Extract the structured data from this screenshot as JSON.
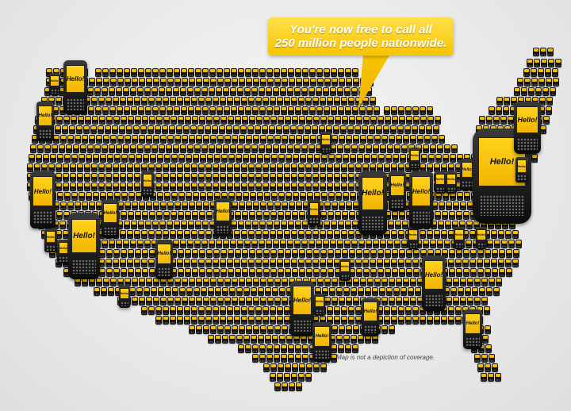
{
  "bubble": {
    "line1": "You're now free to call all",
    "line2": "250 million people nationwide."
  },
  "phone_screen_text": "Hello!",
  "disclaimer": "Map is not a depiction of coverage.",
  "colors": {
    "accent": "#f2be00",
    "phone": "#141414",
    "background": "#e9e9e9"
  }
}
